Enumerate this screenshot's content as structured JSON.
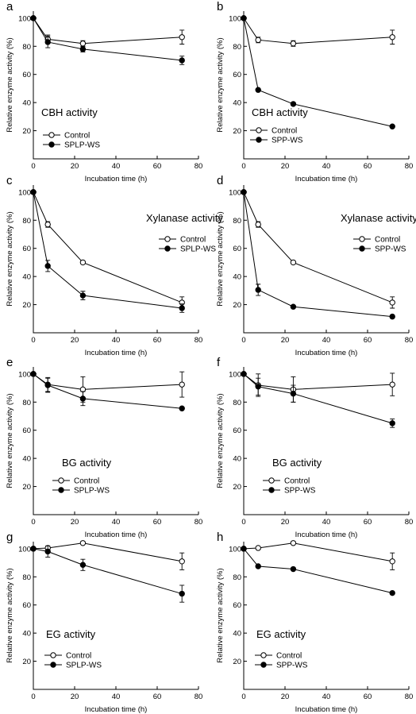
{
  "chart_data": [
    {
      "panel": "a",
      "type": "line",
      "title": "CBH activity",
      "xlabel": "Incubation time (h)",
      "ylabel": "Relative enzyme activity (%)",
      "xlim": [
        0,
        80
      ],
      "ylim": [
        0,
        105
      ],
      "xticks": [
        "0",
        "20",
        "40",
        "60",
        "80"
      ],
      "yticks": [
        "20",
        "40",
        "60",
        "80",
        "100"
      ],
      "legend_position": "bottom-left",
      "series": [
        {
          "name": "Control",
          "marker": "open",
          "x": [
            0,
            7,
            24,
            72
          ],
          "y": [
            100,
            85,
            82,
            86.5
          ],
          "err": [
            0,
            3,
            2,
            5
          ]
        },
        {
          "name": "SPLP-WS",
          "marker": "filled",
          "x": [
            0,
            7,
            24,
            72
          ],
          "y": [
            100,
            83,
            78,
            70
          ],
          "err": [
            0,
            4,
            2,
            3
          ]
        }
      ]
    },
    {
      "panel": "b",
      "type": "line",
      "title": "CBH activity",
      "xlabel": "Incubation time (h)",
      "ylabel": "Relative enzyme activity (%)",
      "xlim": [
        0,
        80
      ],
      "ylim": [
        0,
        105
      ],
      "xticks": [
        "0",
        "20",
        "40",
        "60",
        "80"
      ],
      "yticks": [
        "20",
        "40",
        "60",
        "80",
        "100"
      ],
      "legend_position": "bottom-left",
      "series": [
        {
          "name": "Control",
          "marker": "open",
          "x": [
            0,
            7,
            24,
            72
          ],
          "y": [
            100,
            84.5,
            82,
            86.5
          ],
          "err": [
            0,
            2,
            2,
            5
          ]
        },
        {
          "name": "SPP-WS",
          "marker": "filled",
          "x": [
            0,
            7,
            24,
            72
          ],
          "y": [
            100,
            49,
            39,
            23
          ],
          "err": [
            0,
            0,
            0,
            0
          ]
        }
      ]
    },
    {
      "panel": "c",
      "type": "line",
      "title": "Xylanase activity",
      "xlabel": "Incubation time (h)",
      "ylabel": "Relative enzyme activity (%)",
      "xlim": [
        0,
        80
      ],
      "ylim": [
        0,
        105
      ],
      "xticks": [
        "0",
        "20",
        "40",
        "60",
        "80"
      ],
      "yticks": [
        "20",
        "40",
        "60",
        "80",
        "100"
      ],
      "legend_position": "right",
      "series": [
        {
          "name": "Control",
          "marker": "open",
          "x": [
            0,
            7,
            24,
            72
          ],
          "y": [
            100,
            77,
            50,
            21.5
          ],
          "err": [
            0,
            2,
            0,
            4
          ]
        },
        {
          "name": "SPLP-WS",
          "marker": "filled",
          "x": [
            0,
            7,
            24,
            72
          ],
          "y": [
            100,
            47.5,
            26.5,
            17.5
          ],
          "err": [
            0,
            4,
            3,
            3
          ]
        }
      ]
    },
    {
      "panel": "d",
      "type": "line",
      "title": "Xylanase activity",
      "xlabel": "Incubation time (h)",
      "ylabel": "Relative enzyme activity (%)",
      "xlim": [
        0,
        80
      ],
      "ylim": [
        0,
        105
      ],
      "xticks": [
        "0",
        "20",
        "40",
        "60",
        "80"
      ],
      "yticks": [
        "20",
        "40",
        "60",
        "80",
        "100"
      ],
      "legend_position": "right",
      "series": [
        {
          "name": "Control",
          "marker": "open",
          "x": [
            0,
            7,
            24,
            72
          ],
          "y": [
            100,
            77,
            50,
            21.5
          ],
          "err": [
            0,
            2,
            0,
            4
          ]
        },
        {
          "name": "SPP-WS",
          "marker": "filled",
          "x": [
            0,
            7,
            24,
            72
          ],
          "y": [
            100,
            30.5,
            18.5,
            11.5
          ],
          "err": [
            0,
            4,
            1,
            1
          ]
        }
      ]
    },
    {
      "panel": "e",
      "type": "line",
      "title": "BG activity",
      "xlabel": "Incubation time (h)",
      "ylabel": "Relative enzyme activity (%)",
      "xlim": [
        0,
        80
      ],
      "ylim": [
        0,
        105
      ],
      "xticks": [
        "0",
        "20",
        "40",
        "60",
        "80"
      ],
      "yticks": [
        "20",
        "40",
        "60",
        "80",
        "100"
      ],
      "legend_position": "bottom-left",
      "series": [
        {
          "name": "Control",
          "marker": "open",
          "x": [
            0,
            7,
            24,
            72
          ],
          "y": [
            100,
            92.5,
            89,
            92.5
          ],
          "err": [
            0,
            5,
            9,
            9
          ]
        },
        {
          "name": "SPLP-WS",
          "marker": "filled",
          "x": [
            0,
            7,
            24,
            72
          ],
          "y": [
            100,
            92,
            82.5,
            75.5
          ],
          "err": [
            0,
            5,
            5,
            0
          ]
        }
      ]
    },
    {
      "panel": "f",
      "type": "line",
      "title": "BG activity",
      "xlabel": "Incubation time (h)",
      "ylabel": "Relative enzyme activity (%)",
      "xlim": [
        0,
        80
      ],
      "ylim": [
        0,
        105
      ],
      "xticks": [
        "0",
        "20",
        "40",
        "60",
        "80"
      ],
      "yticks": [
        "20",
        "40",
        "60",
        "80",
        "100"
      ],
      "legend_position": "bottom-left",
      "series": [
        {
          "name": "Control",
          "marker": "open",
          "x": [
            0,
            7,
            24,
            72
          ],
          "y": [
            100,
            92,
            89,
            92.5
          ],
          "err": [
            0,
            8,
            9,
            8
          ]
        },
        {
          "name": "SPP-WS",
          "marker": "filled",
          "x": [
            0,
            7,
            24,
            72
          ],
          "y": [
            100,
            91,
            86,
            65
          ],
          "err": [
            0,
            6,
            6,
            3
          ]
        }
      ]
    },
    {
      "panel": "g",
      "type": "line",
      "title": "EG activity",
      "xlabel": "Incubation time (h)",
      "ylabel": "Relative enzyme activity (%)",
      "xlim": [
        0,
        80
      ],
      "ylim": [
        0,
        105
      ],
      "xticks": [
        "0",
        "20",
        "40",
        "60",
        "80"
      ],
      "yticks": [
        "20",
        "40",
        "60",
        "80",
        "100"
      ],
      "legend_position": "bottom-left",
      "series": [
        {
          "name": "Control",
          "marker": "open",
          "x": [
            0,
            7,
            24,
            72
          ],
          "y": [
            100,
            100.5,
            104,
            91
          ],
          "err": [
            0,
            1,
            1,
            6
          ]
        },
        {
          "name": "SPLP-WS",
          "marker": "filled",
          "x": [
            0,
            7,
            24,
            72
          ],
          "y": [
            100,
            98,
            88.5,
            68
          ],
          "err": [
            0,
            4,
            4,
            6
          ]
        }
      ]
    },
    {
      "panel": "h",
      "type": "line",
      "title": "EG activity",
      "xlabel": "Incubation time (h)",
      "ylabel": "Relative enzyme activity (%)",
      "xlim": [
        0,
        80
      ],
      "ylim": [
        0,
        105
      ],
      "xticks": [
        "0",
        "20",
        "40",
        "60",
        "80"
      ],
      "yticks": [
        "20",
        "40",
        "60",
        "80",
        "100"
      ],
      "legend_position": "bottom-left",
      "series": [
        {
          "name": "Control",
          "marker": "open",
          "x": [
            0,
            7,
            24,
            72
          ],
          "y": [
            100,
            100.5,
            104,
            91
          ],
          "err": [
            0,
            1,
            1,
            6
          ]
        },
        {
          "name": "SPP-WS",
          "marker": "filled",
          "x": [
            0,
            7,
            24,
            72
          ],
          "y": [
            100,
            87.5,
            85.5,
            68.5
          ],
          "err": [
            0,
            0,
            0,
            0
          ]
        }
      ]
    }
  ]
}
